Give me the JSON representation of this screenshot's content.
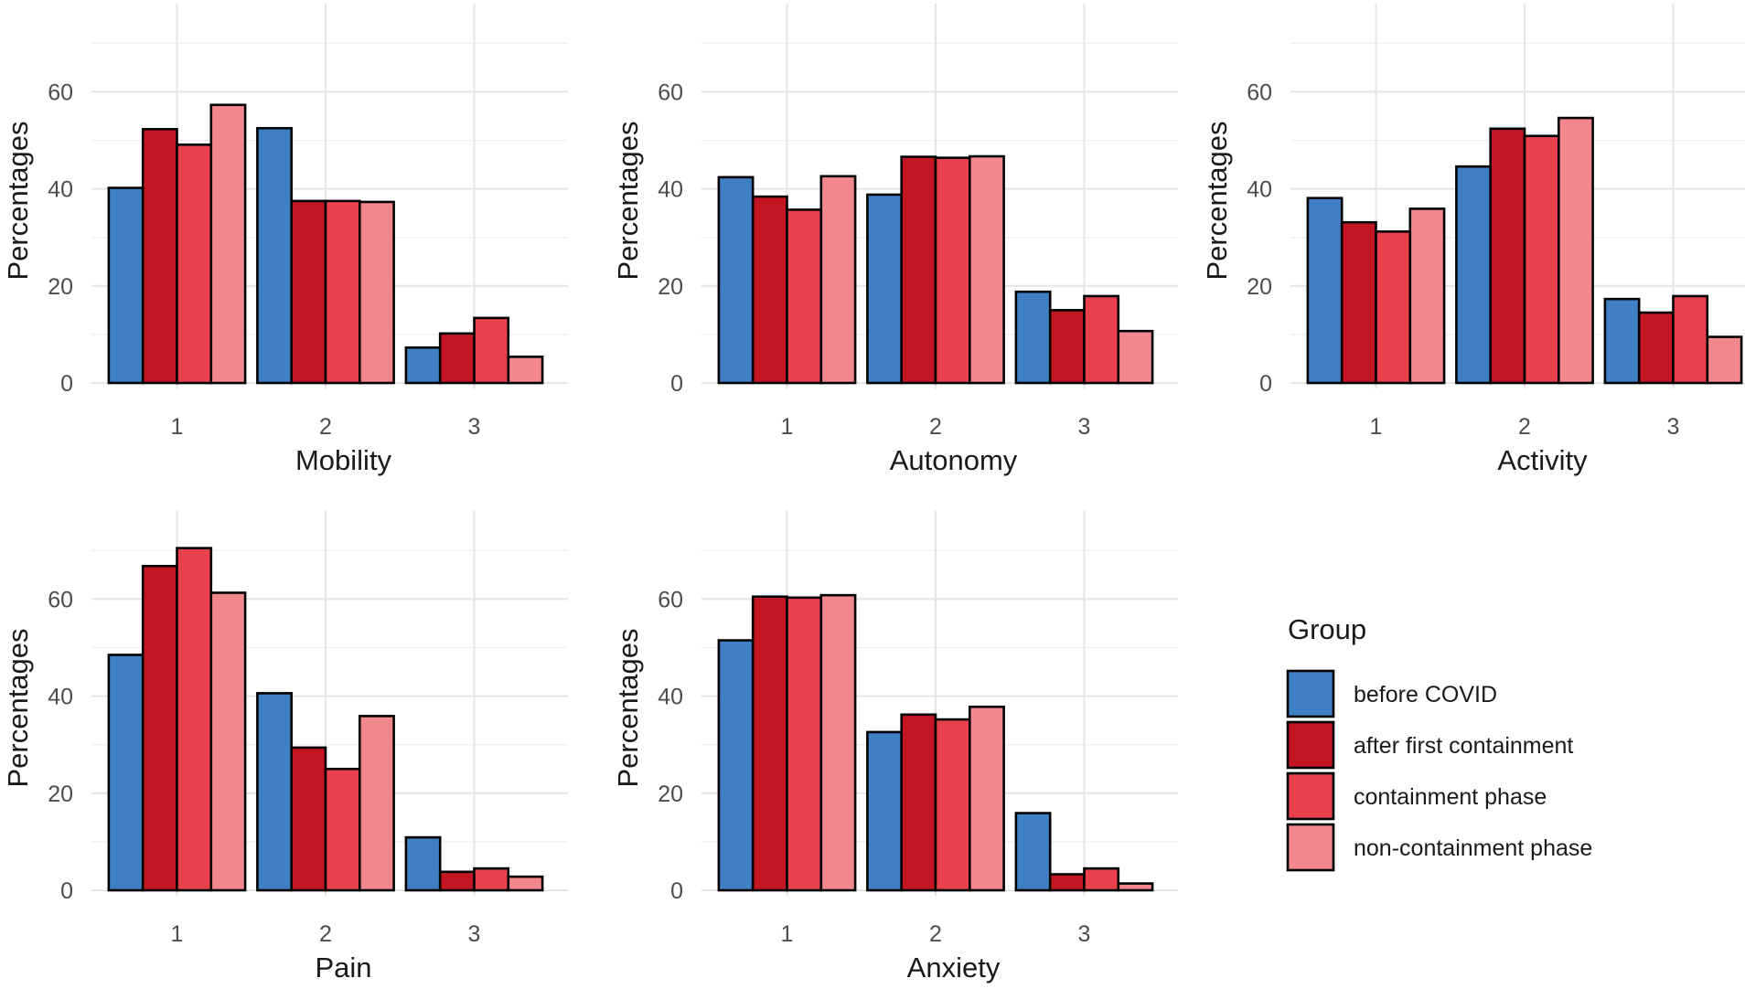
{
  "legend": {
    "title": "Group",
    "items": [
      {
        "name": "before COVID",
        "color": "#3f7fc4"
      },
      {
        "name": "after first containment",
        "color": "#c31622"
      },
      {
        "name": "containment phase",
        "color": "#e8414c"
      },
      {
        "name": "non-containment phase",
        "color": "#f2878d"
      }
    ]
  },
  "chart_data": [
    {
      "type": "bar",
      "title": "Mobility",
      "xlabel": "Mobility",
      "ylabel": "Percentages",
      "categories": [
        "1",
        "2",
        "3"
      ],
      "yticks": [
        0,
        20,
        40,
        60
      ],
      "ylim": [
        0,
        70
      ],
      "series": [
        {
          "name": "before COVID",
          "values": [
            40.2,
            52.5,
            7.3
          ]
        },
        {
          "name": "after first containment",
          "values": [
            52.3,
            37.5,
            10.2
          ]
        },
        {
          "name": "containment phase",
          "values": [
            49.1,
            37.5,
            13.4
          ]
        },
        {
          "name": "non-containment phase",
          "values": [
            57.3,
            37.3,
            5.4
          ]
        }
      ]
    },
    {
      "type": "bar",
      "title": "Autonomy",
      "xlabel": "Autonomy",
      "ylabel": "Percentages",
      "categories": [
        "1",
        "2",
        "3"
      ],
      "yticks": [
        0,
        20,
        40,
        60
      ],
      "ylim": [
        0,
        70
      ],
      "series": [
        {
          "name": "before COVID",
          "values": [
            42.4,
            38.8,
            18.8
          ]
        },
        {
          "name": "after first containment",
          "values": [
            38.4,
            46.6,
            15.0
          ]
        },
        {
          "name": "containment phase",
          "values": [
            35.7,
            46.4,
            17.9
          ]
        },
        {
          "name": "non-containment phase",
          "values": [
            42.6,
            46.7,
            10.7
          ]
        }
      ]
    },
    {
      "type": "bar",
      "title": "Activity",
      "xlabel": "Activity",
      "ylabel": "Percentages",
      "categories": [
        "1",
        "2",
        "3"
      ],
      "yticks": [
        0,
        20,
        40,
        60
      ],
      "ylim": [
        0,
        70
      ],
      "series": [
        {
          "name": "before COVID",
          "values": [
            38.1,
            44.6,
            17.3
          ]
        },
        {
          "name": "after first containment",
          "values": [
            33.1,
            52.4,
            14.5
          ]
        },
        {
          "name": "containment phase",
          "values": [
            31.2,
            50.9,
            17.9
          ]
        },
        {
          "name": "non-containment phase",
          "values": [
            35.9,
            54.6,
            9.5
          ]
        }
      ]
    },
    {
      "type": "bar",
      "title": "Pain",
      "xlabel": "Pain",
      "ylabel": "Percentages",
      "categories": [
        "1",
        "2",
        "3"
      ],
      "yticks": [
        0,
        20,
        40,
        60
      ],
      "ylim": [
        0,
        70
      ],
      "series": [
        {
          "name": "before COVID",
          "values": [
            48.5,
            40.6,
            10.9
          ]
        },
        {
          "name": "after first containment",
          "values": [
            66.8,
            29.4,
            3.8
          ]
        },
        {
          "name": "containment phase",
          "values": [
            70.5,
            25.0,
            4.5
          ]
        },
        {
          "name": "non-containment phase",
          "values": [
            61.3,
            35.9,
            2.8
          ]
        }
      ]
    },
    {
      "type": "bar",
      "title": "Anxiety",
      "xlabel": "Anxiety",
      "ylabel": "Percentages",
      "categories": [
        "1",
        "2",
        "3"
      ],
      "yticks": [
        0,
        20,
        40,
        60
      ],
      "ylim": [
        0,
        70
      ],
      "series": [
        {
          "name": "before COVID",
          "values": [
            51.5,
            32.6,
            15.9
          ]
        },
        {
          "name": "after first containment",
          "values": [
            60.5,
            36.2,
            3.3
          ]
        },
        {
          "name": "containment phase",
          "values": [
            60.3,
            35.2,
            4.5
          ]
        },
        {
          "name": "non-containment phase",
          "values": [
            60.8,
            37.8,
            1.4
          ]
        }
      ]
    }
  ]
}
